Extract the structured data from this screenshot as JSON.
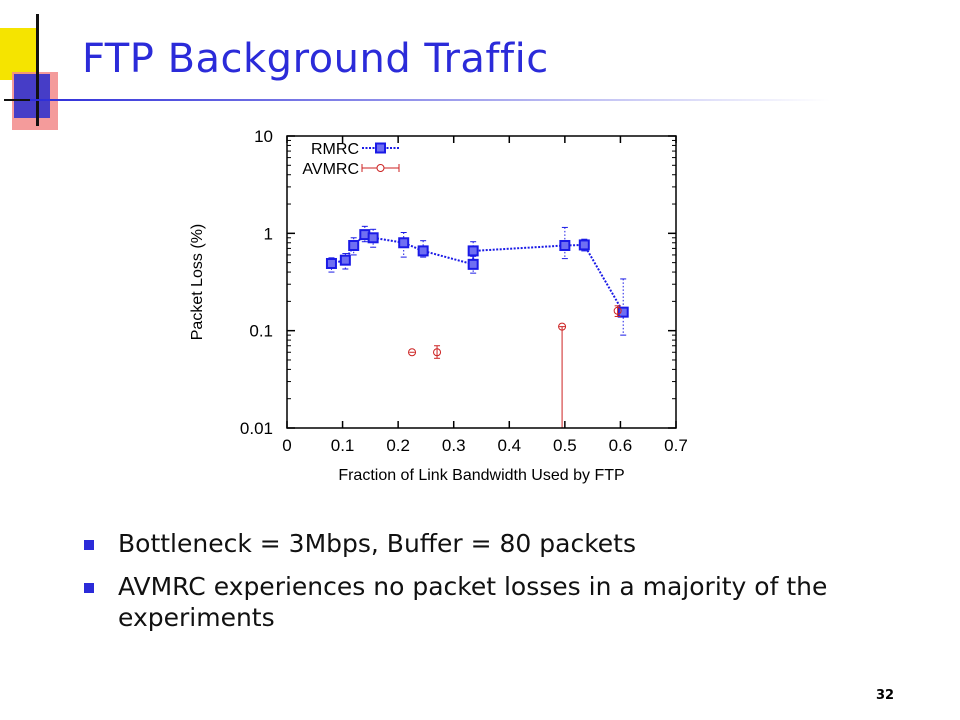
{
  "slide": {
    "title": "FTP Background Traffic",
    "page_number": "32",
    "accent_color": "#2b2bd9",
    "bullets": [
      "Bottleneck = 3Mbps, Buffer = 80 packets",
      "AVMRC experiences no packet losses in a majority of the experiments"
    ]
  },
  "chart_data": {
    "type": "scatter",
    "title": "",
    "xlabel": "Fraction of Link Bandwidth Used by FTP",
    "ylabel": "Packet Loss (%)",
    "xlim": [
      0,
      0.7
    ],
    "ylim": [
      0.01,
      10
    ],
    "yscale": "log",
    "xticks": [
      0,
      0.1,
      0.2,
      0.3,
      0.4,
      0.5,
      0.6,
      0.7
    ],
    "xtick_labels": [
      "0",
      "0.1",
      "0.2",
      "0.3",
      "0.4",
      "0.5",
      "0.6",
      "0.7"
    ],
    "yticks": [
      0.01,
      0.1,
      1,
      10
    ],
    "ytick_labels": [
      "0.01",
      "0.1",
      "1",
      "10"
    ],
    "legend_position": "top-left",
    "series": [
      {
        "name": "RMRC",
        "color": "#1a1ae6",
        "style": "line-points-errorbars",
        "points": [
          {
            "x": 0.08,
            "y": 0.49,
            "ylo": 0.4,
            "yhi": 0.56
          },
          {
            "x": 0.105,
            "y": 0.53,
            "ylo": 0.43,
            "yhi": 0.62
          },
          {
            "x": 0.12,
            "y": 0.75,
            "ylo": 0.6,
            "yhi": 0.9
          },
          {
            "x": 0.14,
            "y": 0.97,
            "ylo": 0.82,
            "yhi": 1.18
          },
          {
            "x": 0.155,
            "y": 0.9,
            "ylo": 0.72,
            "yhi": 1.1
          },
          {
            "x": 0.21,
            "y": 0.8,
            "ylo": 0.57,
            "yhi": 1.02
          },
          {
            "x": 0.245,
            "y": 0.66,
            "ylo": 0.57,
            "yhi": 0.84
          },
          {
            "x": 0.335,
            "y": 0.48,
            "ylo": 0.39,
            "yhi": 0.58
          },
          {
            "x": 0.335,
            "y": 0.66,
            "ylo": 0.53,
            "yhi": 0.82
          },
          {
            "x": 0.5,
            "y": 0.75,
            "ylo": 0.55,
            "yhi": 1.15
          },
          {
            "x": 0.535,
            "y": 0.76,
            "ylo": 0.66,
            "yhi": 0.87
          },
          {
            "x": 0.605,
            "y": 0.155,
            "ylo": 0.09,
            "yhi": 0.34
          }
        ]
      },
      {
        "name": "AVMRC",
        "color": "#cc2222",
        "style": "points-errorbars",
        "points": [
          {
            "x": 0.225,
            "y": 0.06,
            "ylo": 0.06,
            "yhi": 0.06,
            "xlo": 0.22,
            "xhi": 0.23
          },
          {
            "x": 0.27,
            "y": 0.06,
            "ylo": 0.052,
            "yhi": 0.07
          },
          {
            "x": 0.495,
            "y": 0.11,
            "ylo": 0.01,
            "yhi": 0.11
          },
          {
            "x": 0.595,
            "y": 0.16,
            "ylo": 0.14,
            "yhi": 0.18
          }
        ]
      }
    ]
  }
}
